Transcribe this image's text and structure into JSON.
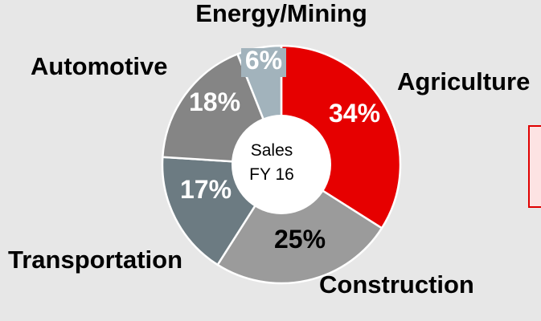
{
  "chart_data": {
    "type": "pie",
    "title": "",
    "center_label": [
      "Sales",
      "FY 16"
    ],
    "categories": [
      "Agriculture",
      "Construction",
      "Transportation",
      "Automotive",
      "Energy/Mining"
    ],
    "values": [
      34,
      25,
      17,
      18,
      6
    ],
    "value_labels": [
      "34%",
      "25%",
      "17%",
      "18%",
      "6%"
    ],
    "colors": [
      "#e60000",
      "#9b9b9b",
      "#6c7b82",
      "#858585",
      "#a2b3bc"
    ],
    "value_label_colors": [
      "#ffffff",
      "#000000",
      "#ffffff",
      "#ffffff",
      "#ffffff"
    ],
    "style": "donut"
  }
}
